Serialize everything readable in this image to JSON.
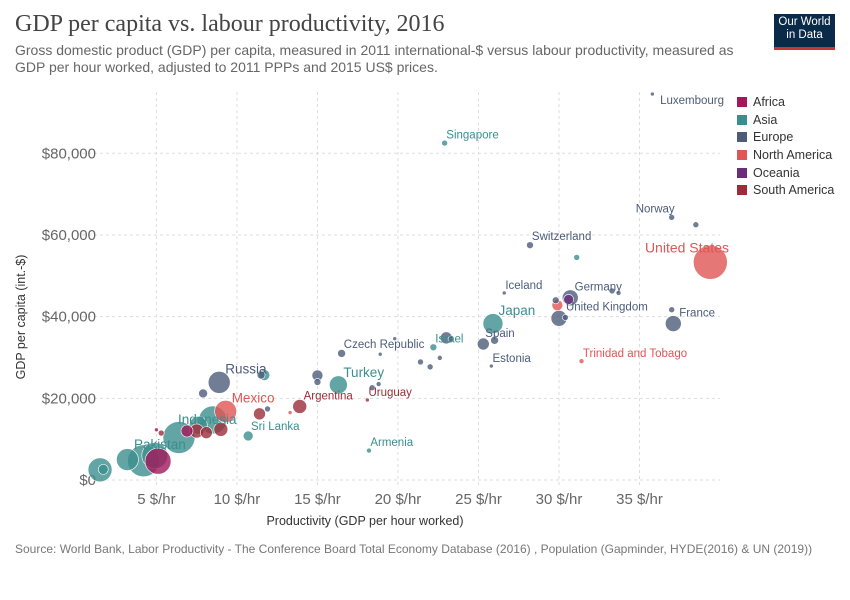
{
  "header": {
    "title": "GDP per capita vs. labour productivity, 2016",
    "subtitle": "Gross domestic product (GDP) per capita, measured in 2011 international-$ versus labour productivity, measured as GDP per hour worked, adjusted to 2011 PPPs and 2015 US$ prices.",
    "logo_line1": "Our World",
    "logo_line2": "in Data"
  },
  "legend": [
    {
      "name": "Africa",
      "color": "#a2185b"
    },
    {
      "name": "Asia",
      "color": "#3c8e8e"
    },
    {
      "name": "Europe",
      "color": "#4c5c7a"
    },
    {
      "name": "North America",
      "color": "#e05555"
    },
    {
      "name": "Oceania",
      "color": "#6b2c7a"
    },
    {
      "name": "South America",
      "color": "#9b2d3a"
    }
  ],
  "source": "Source: World Bank, Labor Productivity - The Conference Board Total Economy Database (2016) , Population (Gapminder, HYDE(2016) & UN (2019))",
  "chart_data": {
    "type": "scatter",
    "title": "GDP per capita vs. labour productivity, 2016",
    "xlabel": "Productivity (GDP per hour worked)",
    "ylabel": "GDP per capita (int.-$)",
    "xlim": [
      1,
      40
    ],
    "ylim": [
      0,
      95000
    ],
    "x_ticks": [
      5,
      10,
      15,
      20,
      25,
      30,
      35
    ],
    "x_tick_labels": [
      "5 $/hr",
      "10 $/hr",
      "15 $/hr",
      "20 $/hr",
      "25 $/hr",
      "30 $/hr",
      "35 $/hr"
    ],
    "y_ticks": [
      0,
      20000,
      40000,
      60000,
      80000
    ],
    "y_tick_labels": [
      "$0",
      "$20,000",
      "$40,000",
      "$60,000",
      "$80,000"
    ],
    "grid": true,
    "legend_position": "right",
    "size_encoding": "population",
    "points": [
      {
        "name": "Luxembourg",
        "label": true,
        "continent": "Europe",
        "x": 35.8,
        "y": 94500,
        "r": 2
      },
      {
        "name": "Singapore",
        "label": true,
        "continent": "Asia",
        "x": 22.9,
        "y": 82500,
        "r": 3
      },
      {
        "name": "Norway",
        "label": true,
        "continent": "Europe",
        "x": 37.0,
        "y": 64300,
        "r": 3
      },
      {
        "name": "",
        "label": false,
        "continent": "Europe",
        "x": 38.5,
        "y": 62500,
        "r": 3
      },
      {
        "name": "United States",
        "label": true,
        "continent": "North America",
        "x": 39.4,
        "y": 53300,
        "r": 17
      },
      {
        "name": "Switzerland",
        "label": true,
        "continent": "Europe",
        "x": 28.2,
        "y": 57500,
        "r": 3.5
      },
      {
        "name": "",
        "label": false,
        "continent": "Asia",
        "x": 31.1,
        "y": 54500,
        "r": 3
      },
      {
        "name": "Iceland",
        "label": true,
        "continent": "Europe",
        "x": 26.6,
        "y": 45800,
        "r": 2
      },
      {
        "name": "Germany",
        "label": true,
        "continent": "Europe",
        "x": 30.7,
        "y": 44600,
        "r": 8
      },
      {
        "name": "",
        "label": false,
        "continent": "Oceania",
        "x": 30.6,
        "y": 44200,
        "r": 5
      },
      {
        "name": "",
        "label": false,
        "continent": "Europe",
        "x": 29.8,
        "y": 44000,
        "r": 3.5
      },
      {
        "name": "",
        "label": false,
        "continent": "North America",
        "x": 29.9,
        "y": 42800,
        "r": 5.5
      },
      {
        "name": "",
        "label": false,
        "continent": "Europe",
        "x": 33.3,
        "y": 46300,
        "r": 3
      },
      {
        "name": "",
        "label": false,
        "continent": "Europe",
        "x": 33.7,
        "y": 45800,
        "r": 2.5
      },
      {
        "name": "United Kingdom",
        "label": true,
        "continent": "Europe",
        "x": 30.0,
        "y": 39600,
        "r": 8
      },
      {
        "name": "",
        "label": false,
        "continent": "Europe",
        "x": 30.4,
        "y": 39800,
        "r": 3
      },
      {
        "name": "France",
        "label": true,
        "continent": "Europe",
        "x": 37.1,
        "y": 38300,
        "r": 8
      },
      {
        "name": "",
        "label": false,
        "continent": "Europe",
        "x": 37.0,
        "y": 41700,
        "r": 3
      },
      {
        "name": "Japan",
        "label": true,
        "continent": "Asia",
        "x": 25.9,
        "y": 38300,
        "r": 10
      },
      {
        "name": "Spain",
        "label": true,
        "continent": "Europe",
        "x": 25.3,
        "y": 33300,
        "r": 6
      },
      {
        "name": "",
        "label": false,
        "continent": "Europe",
        "x": 26.0,
        "y": 34200,
        "r": 4
      },
      {
        "name": "Israel",
        "label": true,
        "continent": "Asia",
        "x": 22.2,
        "y": 32500,
        "r": 3.5
      },
      {
        "name": "",
        "label": false,
        "continent": "Europe",
        "x": 23.0,
        "y": 34800,
        "r": 6
      },
      {
        "name": "",
        "label": false,
        "continent": "Europe",
        "x": 23.3,
        "y": 34500,
        "r": 3
      },
      {
        "name": "",
        "label": false,
        "continent": "Europe",
        "x": 21.4,
        "y": 28900,
        "r": 3
      },
      {
        "name": "",
        "label": false,
        "continent": "Europe",
        "x": 22.0,
        "y": 27700,
        "r": 3
      },
      {
        "name": "",
        "label": false,
        "continent": "Europe",
        "x": 22.6,
        "y": 29900,
        "r": 2.5
      },
      {
        "name": "Estonia",
        "label": true,
        "continent": "Europe",
        "x": 25.8,
        "y": 27900,
        "r": 2
      },
      {
        "name": "Czech Republic",
        "label": true,
        "continent": "Europe",
        "x": 16.5,
        "y": 31000,
        "r": 4
      },
      {
        "name": "",
        "label": false,
        "continent": "Europe",
        "x": 18.9,
        "y": 30800,
        "r": 2
      },
      {
        "name": "",
        "label": false,
        "continent": "Europe",
        "x": 19.8,
        "y": 34600,
        "r": 2
      },
      {
        "name": "Trinidad and Tobago",
        "label": true,
        "continent": "North America",
        "x": 31.4,
        "y": 29100,
        "r": 2.5
      },
      {
        "name": "Russia",
        "label": true,
        "continent": "Europe",
        "x": 8.9,
        "y": 23900,
        "r": 11
      },
      {
        "name": "",
        "label": false,
        "continent": "Europe",
        "x": 11.5,
        "y": 25700,
        "r": 4
      },
      {
        "name": "",
        "label": false,
        "continent": "Asia",
        "x": 11.7,
        "y": 25700,
        "r": 5.5
      },
      {
        "name": "",
        "label": false,
        "continent": "Europe",
        "x": 7.9,
        "y": 21200,
        "r": 4.5
      },
      {
        "name": "Turkey",
        "label": true,
        "continent": "Asia",
        "x": 16.3,
        "y": 23300,
        "r": 9
      },
      {
        "name": "",
        "label": false,
        "continent": "Europe",
        "x": 15.0,
        "y": 25600,
        "r": 5.5
      },
      {
        "name": "",
        "label": false,
        "continent": "Europe",
        "x": 15.0,
        "y": 24000,
        "r": 3.5
      },
      {
        "name": "",
        "label": false,
        "continent": "Europe",
        "x": 18.8,
        "y": 23500,
        "r": 2.5
      },
      {
        "name": "",
        "label": false,
        "continent": "Europe",
        "x": 18.4,
        "y": 22600,
        "r": 3
      },
      {
        "name": "Uruguay",
        "label": true,
        "continent": "South America",
        "x": 18.1,
        "y": 19600,
        "r": 2
      },
      {
        "name": "Argentina",
        "label": true,
        "continent": "South America",
        "x": 13.9,
        "y": 18000,
        "r": 7
      },
      {
        "name": "",
        "label": false,
        "continent": "North America",
        "x": 13.3,
        "y": 16500,
        "r": 2
      },
      {
        "name": "Mexico",
        "label": true,
        "continent": "North America",
        "x": 9.3,
        "y": 16800,
        "r": 11
      },
      {
        "name": "",
        "label": false,
        "continent": "South America",
        "x": 11.4,
        "y": 16200,
        "r": 6
      },
      {
        "name": "",
        "label": false,
        "continent": "Europe",
        "x": 11.9,
        "y": 17400,
        "r": 3
      },
      {
        "name": "Sri Lanka",
        "label": true,
        "continent": "Asia",
        "x": 10.7,
        "y": 10800,
        "r": 5
      },
      {
        "name": "Indonesia",
        "label": true,
        "continent": "Asia",
        "x": 8.5,
        "y": 14700,
        "r": 14
      },
      {
        "name": "",
        "label": false,
        "continent": "South America",
        "x": 9.0,
        "y": 12400,
        "r": 7
      },
      {
        "name": "",
        "label": false,
        "continent": "South America",
        "x": 8.1,
        "y": 11600,
        "r": 6
      },
      {
        "name": "",
        "label": false,
        "continent": "South America",
        "x": 7.5,
        "y": 12000,
        "r": 7
      },
      {
        "name": "",
        "label": false,
        "continent": "Africa",
        "x": 6.9,
        "y": 12000,
        "r": 6
      },
      {
        "name": "",
        "label": false,
        "continent": "Asia",
        "x": 7.6,
        "y": 13400,
        "r": 9
      },
      {
        "name": "",
        "label": false,
        "continent": "South America",
        "x": 5.3,
        "y": 11500,
        "r": 3
      },
      {
        "name": "",
        "label": false,
        "continent": "Africa",
        "x": 5.0,
        "y": 12300,
        "r": 2
      },
      {
        "name": "",
        "label": false,
        "continent": "Asia",
        "x": 6.4,
        "y": 10400,
        "r": 16
      },
      {
        "name": "Pakistan",
        "label": true,
        "continent": "Asia",
        "x": 4.9,
        "y": 6000,
        "r": 13
      },
      {
        "name": "",
        "label": false,
        "continent": "Asia",
        "x": 3.2,
        "y": 5000,
        "r": 11
      },
      {
        "name": "",
        "label": false,
        "continent": "Asia",
        "x": 4.2,
        "y": 4700,
        "r": 16
      },
      {
        "name": "",
        "label": false,
        "continent": "Africa",
        "x": 5.1,
        "y": 4600,
        "r": 13
      },
      {
        "name": "",
        "label": false,
        "continent": "Asia",
        "x": 1.5,
        "y": 2500,
        "r": 12
      },
      {
        "name": "",
        "label": false,
        "continent": "Asia",
        "x": 1.7,
        "y": 2600,
        "r": 5
      },
      {
        "name": "Armenia",
        "label": true,
        "continent": "Asia",
        "x": 18.2,
        "y": 7200,
        "r": 2.5
      }
    ]
  }
}
